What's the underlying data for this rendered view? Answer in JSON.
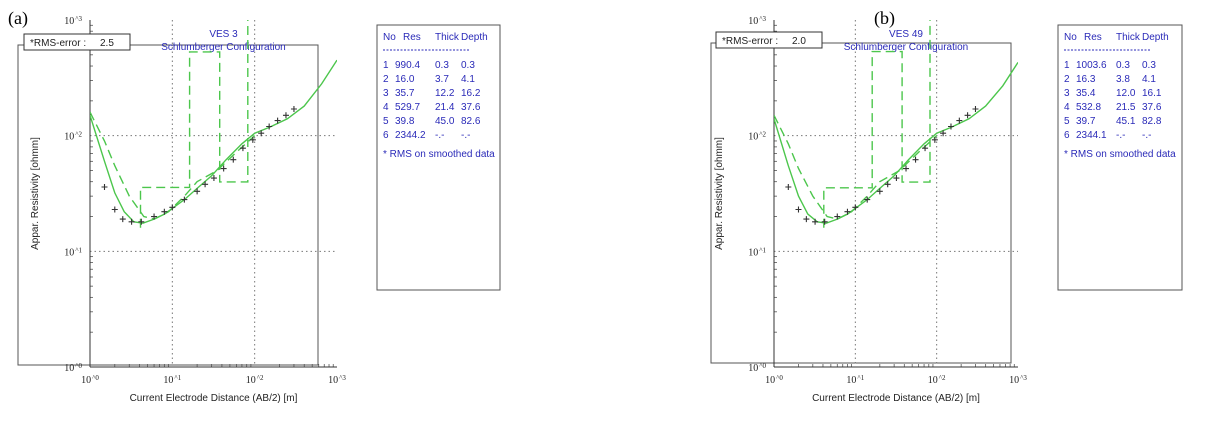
{
  "chart_data": [
    {
      "panel": "(a)",
      "type": "line",
      "title": "VES 3",
      "subtitle": "Schlumberger Configuration",
      "rms_label": "*RMS-error :",
      "rms_value": "2.5",
      "xlabel": "Current Electrode Distance (AB/2) [m]",
      "ylabel": "Appar. Resistivity [ohmm]",
      "x_scale": "log",
      "y_scale": "log",
      "xlim": [
        1,
        1000
      ],
      "ylim": [
        1,
        1000
      ],
      "x_ticks": [
        "10^0",
        "10^1",
        "10^2",
        "10^3"
      ],
      "y_ticks": [
        "10^0",
        "10^1",
        "10^2",
        "10^3"
      ],
      "grid": true,
      "table_headers": [
        "No",
        "Res",
        "Thick",
        "Depth"
      ],
      "table_rows": [
        [
          "1",
          "990.4",
          "0.3",
          "0.3"
        ],
        [
          "2",
          "16.0",
          "3.7",
          "4.1"
        ],
        [
          "3",
          "35.7",
          "12.2",
          "16.2"
        ],
        [
          "4",
          "529.7",
          "21.4",
          "37.6"
        ],
        [
          "5",
          "39.8",
          "45.0",
          "82.6"
        ],
        [
          "6",
          "2344.2",
          "-.-",
          "-.-"
        ]
      ],
      "note": "* RMS on smoothed data",
      "series": [
        {
          "style": "solid",
          "color": "#4cc64c",
          "x": [
            1,
            1.5,
            2,
            2.6,
            3.4,
            4.4,
            6,
            8,
            10,
            14,
            20,
            30,
            45,
            70,
            100,
            150,
            250,
            400,
            650,
            1000
          ],
          "y": [
            150,
            60,
            32,
            22,
            18,
            17.5,
            19,
            21,
            23.5,
            28,
            35,
            45,
            62,
            85,
            105,
            118,
            140,
            180,
            280,
            450
          ]
        },
        {
          "style": "dashed",
          "color": "#4cc64c",
          "x": [
            1,
            1.5,
            2,
            3,
            4.5,
            6,
            9,
            14,
            20,
            35,
            60,
            100
          ],
          "y": [
            160,
            90,
            55,
            30,
            20,
            19,
            22,
            30,
            40,
            50,
            72,
            100
          ]
        },
        {
          "style": "dashed-step",
          "color": "#4cc64c",
          "x": [
            4.1,
            4.1,
            16.2,
            16.2,
            37.6,
            37.6,
            82.6,
            82.6
          ],
          "y": [
            16,
            35.7,
            35.7,
            529.7,
            529.7,
            39.8,
            39.8,
            1000
          ]
        },
        {
          "style": "markers",
          "marker": "+",
          "color": "#333333",
          "x": [
            1.5,
            2,
            2.5,
            3.2,
            4.2,
            6,
            8,
            10,
            14,
            20,
            25,
            32,
            42,
            55,
            72,
            95,
            120,
            150,
            190,
            240,
            300
          ],
          "y": [
            36,
            23,
            19,
            18,
            18,
            20,
            22,
            24,
            28,
            33,
            38,
            43,
            52,
            62,
            78,
            92,
            105,
            120,
            135,
            150,
            170
          ]
        }
      ]
    },
    {
      "panel": "(b)",
      "type": "line",
      "title": "VES 49",
      "subtitle": "Schlumberger Configuration",
      "rms_label": "*RMS-error :",
      "rms_value": "2.0",
      "xlabel": "Current Electrode Distance (AB/2) [m]",
      "ylabel": "Appar. Resistivity [ohmm]",
      "x_scale": "log",
      "y_scale": "log",
      "xlim": [
        1,
        1000
      ],
      "ylim": [
        1,
        1000
      ],
      "x_ticks": [
        "10^0",
        "10^1",
        "10^2",
        "10^3"
      ],
      "y_ticks": [
        "10^0",
        "10^1",
        "10^2",
        "10^3"
      ],
      "grid": true,
      "table_headers": [
        "No",
        "Res",
        "Thick",
        "Depth"
      ],
      "table_rows": [
        [
          "1",
          "1003.6",
          "0.3",
          "0.3"
        ],
        [
          "2",
          "16.3",
          "3.8",
          "4.1"
        ],
        [
          "3",
          "35.4",
          "12.0",
          "16.1"
        ],
        [
          "4",
          "532.8",
          "21.5",
          "37.6"
        ],
        [
          "5",
          "39.7",
          "45.1",
          "82.8"
        ],
        [
          "6",
          "2344.1",
          "-.-",
          "-.-"
        ]
      ],
      "note": "* RMS on smoothed data",
      "series": [
        {
          "style": "solid",
          "color": "#4cc64c",
          "x": [
            1,
            1.5,
            2,
            2.6,
            3.4,
            4.4,
            6,
            8,
            10,
            14,
            20,
            30,
            45,
            70,
            100,
            150,
            250,
            400,
            650,
            1000
          ],
          "y": [
            140,
            55,
            30,
            21,
            18,
            17.5,
            19,
            21,
            23.5,
            28,
            35,
            45,
            62,
            85,
            105,
            118,
            140,
            180,
            270,
            430
          ]
        },
        {
          "style": "dashed",
          "color": "#4cc64c",
          "x": [
            1,
            1.5,
            2,
            3,
            4.5,
            6,
            9,
            14,
            20,
            35,
            60,
            100
          ],
          "y": [
            150,
            85,
            52,
            30,
            20,
            19,
            22,
            30,
            40,
            50,
            72,
            100
          ]
        },
        {
          "style": "dashed-step",
          "color": "#4cc64c",
          "x": [
            4.1,
            4.1,
            16.1,
            16.1,
            37.6,
            37.6,
            82.8,
            82.8
          ],
          "y": [
            16,
            35.4,
            35.4,
            532.8,
            532.8,
            39.7,
            39.7,
            1000
          ]
        },
        {
          "style": "markers",
          "marker": "+",
          "color": "#333333",
          "x": [
            1.5,
            2,
            2.5,
            3.2,
            4.2,
            6,
            8,
            10,
            14,
            20,
            25,
            32,
            42,
            55,
            72,
            95,
            120,
            150,
            190,
            240,
            300
          ],
          "y": [
            36,
            23,
            19,
            18,
            18,
            20,
            22,
            24,
            28,
            33,
            38,
            43,
            52,
            62,
            78,
            92,
            105,
            120,
            135,
            150,
            170
          ]
        }
      ]
    }
  ]
}
